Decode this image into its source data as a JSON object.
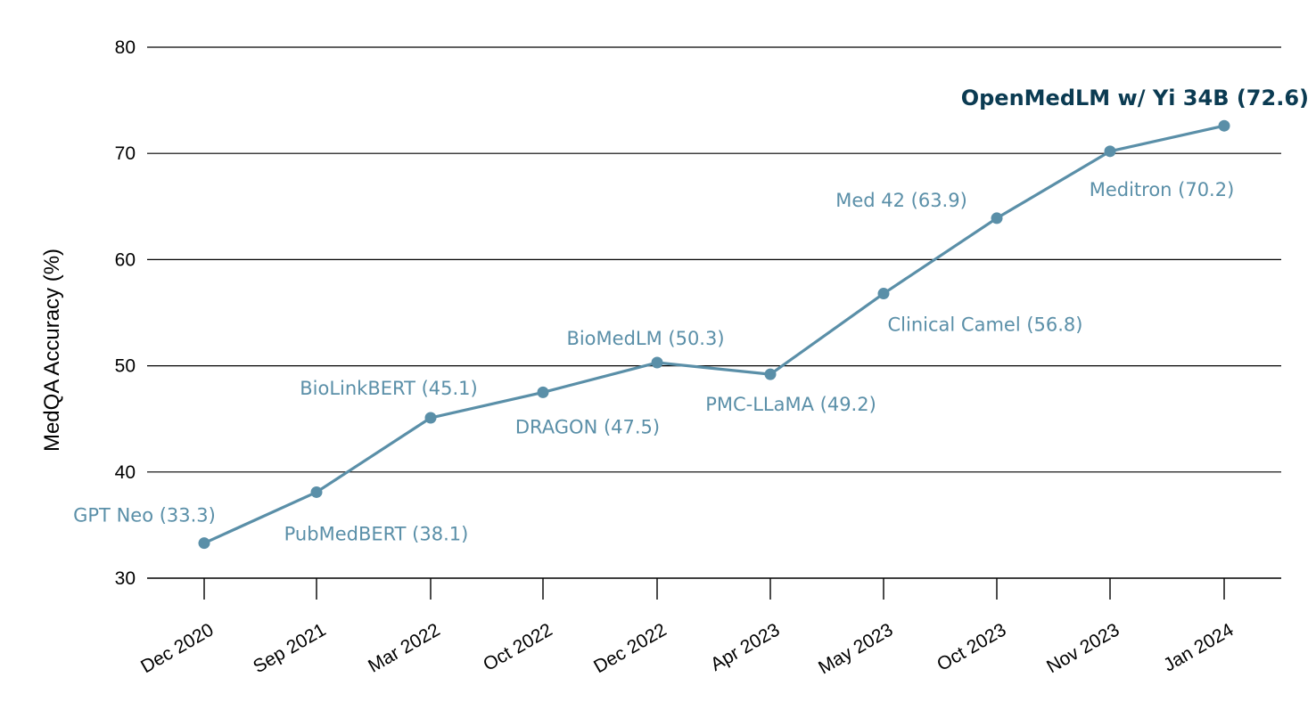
{
  "chart_data": {
    "type": "line",
    "title": "",
    "xlabel": "",
    "ylabel": "MedQA Accuracy (%)",
    "ylim": [
      30,
      80
    ],
    "yticks": [
      30,
      40,
      50,
      60,
      70,
      80
    ],
    "grid": "horizontal",
    "categories": [
      "Dec 2020",
      "Sep 2021",
      "Mar 2022",
      "Oct 2022",
      "Dec 2022",
      "Apr 2023",
      "May 2023",
      "Oct 2023",
      "Nov 2023",
      "Jan 2024"
    ],
    "values": [
      33.3,
      38.1,
      45.1,
      47.5,
      50.3,
      49.2,
      56.8,
      63.9,
      70.2,
      72.6
    ],
    "point_labels": [
      "GPT Neo (33.3)",
      "PubMedBERT (38.1)",
      "BioLinkBERT (45.1)",
      "DRAGON (47.5)",
      "BioMedLM (50.3)",
      "PMC-LLaMA (49.2)",
      "Clinical Camel (56.8)",
      "Med 42 (63.9)",
      "Meditron (70.2)",
      "OpenMedLM w/ Yi 34B (72.6)"
    ],
    "highlight_index": 9,
    "colors": {
      "line": "#5a8fa8",
      "label": "#5a8fa8",
      "highlight_label": "#0b3b52",
      "grid": "#000000",
      "text": "#000000"
    }
  }
}
